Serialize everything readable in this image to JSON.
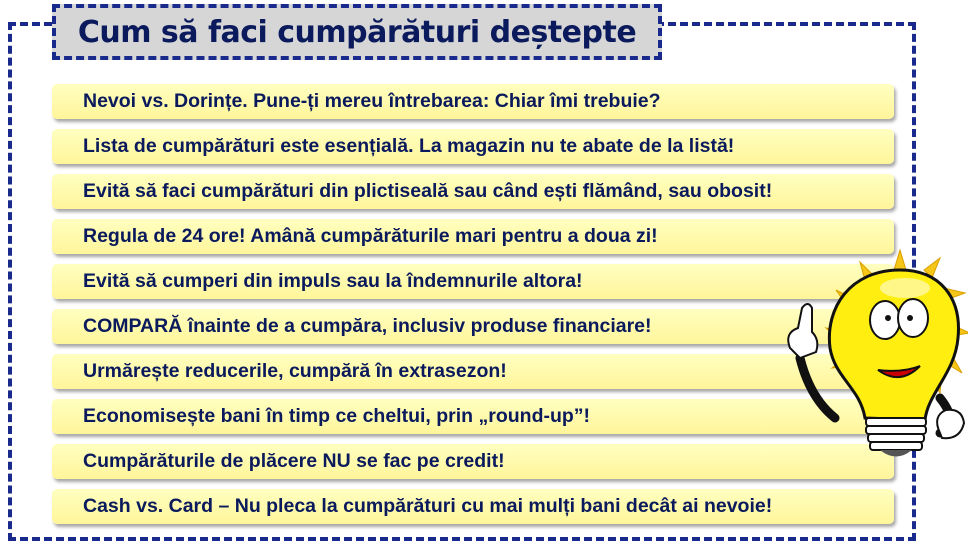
{
  "title": "Cum să faci cumpărături deștepte",
  "items": [
    "Nevoi vs. Dorințe. Pune-ți mereu întrebarea: Chiar îmi trebuie?",
    "Lista de cumpărături este esențială. La magazin nu te abate de la listă!",
    "Evită să faci cumpărături din plictiseală sau când ești flămând, sau obosit!",
    "Regula de 24 ore! Amână cumpărăturile mari pentru a doua zi!",
    "Evită să cumperi din impuls sau la îndemnurile altora!",
    "COMPARĂ înainte de a cumpăra, inclusiv produse financiare!",
    "Urmărește reducerile, cumpără în extrasezon!",
    "Economisește bani în timp ce cheltui, prin „round-up”!",
    "Cumpărăturile de plăcere NU se fac pe credit!",
    "Cash vs. Card – Nu pleca la cumpărături cu mai mulți bani decât ai nevoie!"
  ],
  "colors": {
    "text": "#0a1a5c",
    "border": "#1a2a8c",
    "bar": "#fff59a",
    "title_bg": "#d6d6d6"
  },
  "illustration": "lightbulb-character-icon"
}
